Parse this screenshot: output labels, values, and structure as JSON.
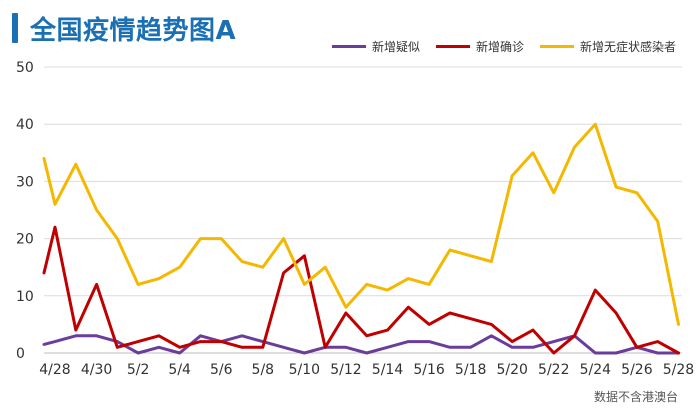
{
  "chart_data": {
    "type": "line",
    "title": "全国疫情趋势图A",
    "x": [
      "4/28",
      "4/29",
      "4/30",
      "5/1",
      "5/2",
      "5/3",
      "5/4",
      "5/5",
      "5/6",
      "5/7",
      "5/8",
      "5/9",
      "5/10",
      "5/11",
      "5/12",
      "5/13",
      "5/14",
      "5/15",
      "5/16",
      "5/17",
      "5/18",
      "5/19",
      "5/20",
      "5/21",
      "5/22",
      "5/23",
      "5/24",
      "5/25",
      "5/26",
      "5/27",
      "5/28"
    ],
    "x_tick_labels": [
      "4/28",
      "4/30",
      "5/2",
      "5/4",
      "5/6",
      "5/8",
      "5/10",
      "5/12",
      "5/14",
      "5/16",
      "5/18",
      "5/20",
      "5/22",
      "5/24",
      "5/26",
      "5/28"
    ],
    "ylim": [
      0,
      50
    ],
    "yticks": [
      0,
      10,
      20,
      30,
      40,
      50
    ],
    "grid": true,
    "legend_position": "top-right",
    "series": [
      {
        "name": "新增疑似",
        "color": "#6a3d9a",
        "start": 1.5,
        "values": [
          2,
          3,
          3,
          2,
          0,
          1,
          0,
          3,
          2,
          3,
          2,
          1,
          0,
          1,
          1,
          0,
          1,
          2,
          2,
          1,
          1,
          3,
          1,
          1,
          2,
          3,
          0,
          0,
          1,
          0,
          0
        ]
      },
      {
        "name": "新增确诊",
        "color": "#c00000",
        "start": 14,
        "values": [
          22,
          4,
          12,
          1,
          2,
          3,
          1,
          2,
          2,
          1,
          1,
          14,
          17,
          1,
          7,
          3,
          4,
          8,
          5,
          7,
          6,
          5,
          2,
          4,
          0,
          3,
          11,
          7,
          1,
          2,
          0
        ]
      },
      {
        "name": "新增无症状感染者",
        "color": "#f5b800",
        "start": 34,
        "values": [
          26,
          33,
          25,
          20,
          12,
          13,
          15,
          20,
          20,
          16,
          15,
          20,
          12,
          15,
          8,
          12,
          11,
          13,
          12,
          18,
          17,
          16,
          31,
          35,
          28,
          36,
          40,
          29,
          28,
          23,
          5
        ]
      }
    ],
    "source_note": "数据不含港澳台"
  }
}
